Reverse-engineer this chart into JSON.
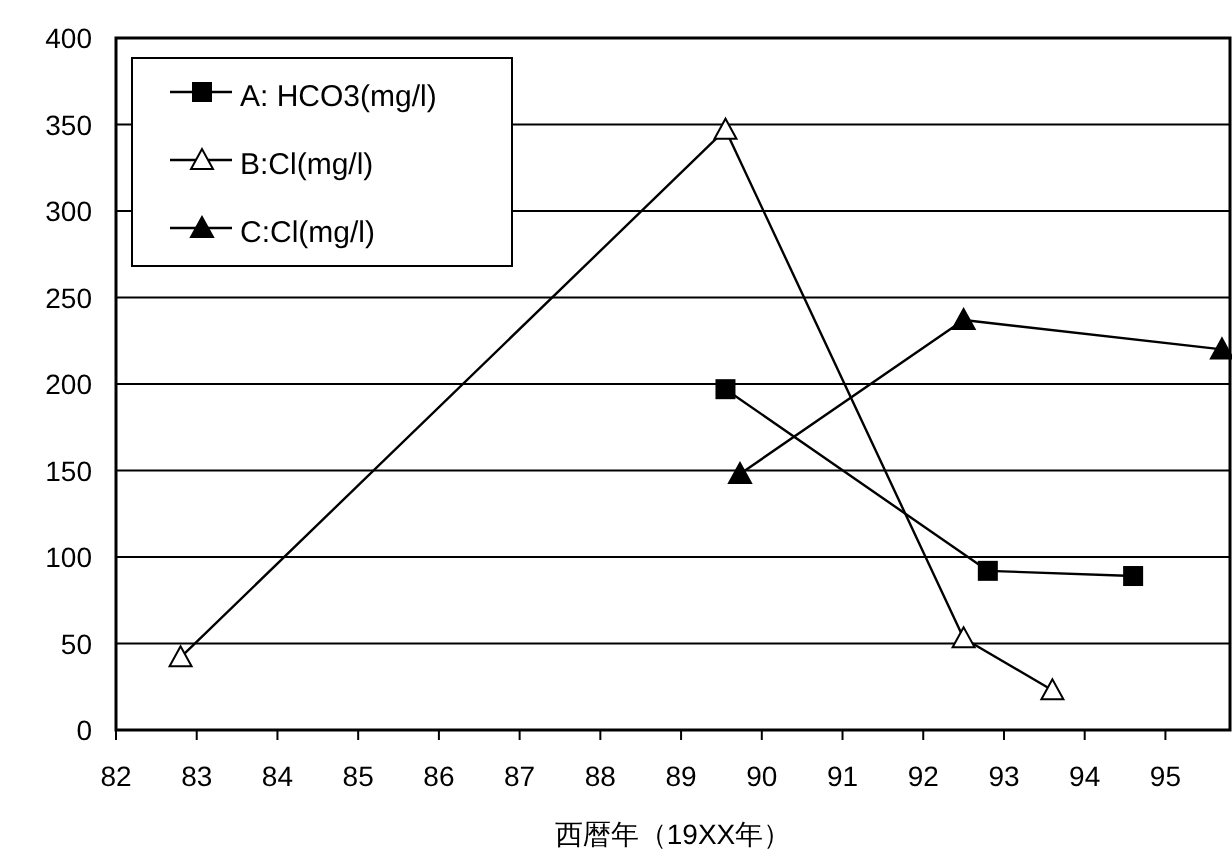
{
  "chart_data": {
    "type": "line",
    "xlabel": "西暦年（19XX年）",
    "xlim": [
      82,
      95.8
    ],
    "xticks": [
      82,
      83,
      84,
      85,
      86,
      87,
      88,
      89,
      90,
      91,
      92,
      93,
      94,
      95
    ],
    "ylim": [
      0,
      400
    ],
    "yticks": [
      0,
      50,
      100,
      150,
      200,
      250,
      300,
      350,
      400
    ],
    "grid": "y",
    "legend": "top left",
    "line_style": "solid",
    "series": [
      {
        "name": "A: HCO3(mg/l)",
        "color": "#000000",
        "marker": "square",
        "x": [
          89.55,
          92.8,
          94.6
        ],
        "values": [
          197,
          92,
          89
        ]
      },
      {
        "name": "B:Cl(mg/l)",
        "color": "#000000",
        "marker": "triangle",
        "colors": [
          "#ffffff",
          "#ffffff",
          "#ffffff",
          "#ffffff"
        ],
        "x": [
          82.8,
          89.55,
          92.5,
          93.6
        ],
        "values": [
          42,
          347,
          53,
          23
        ]
      },
      {
        "name": "C:Cl(mg/l)",
        "color": "#000000",
        "marker": "triangle",
        "x": [
          89.73,
          92.5,
          95.7
        ],
        "values": [
          148,
          237,
          220
        ]
      }
    ]
  }
}
